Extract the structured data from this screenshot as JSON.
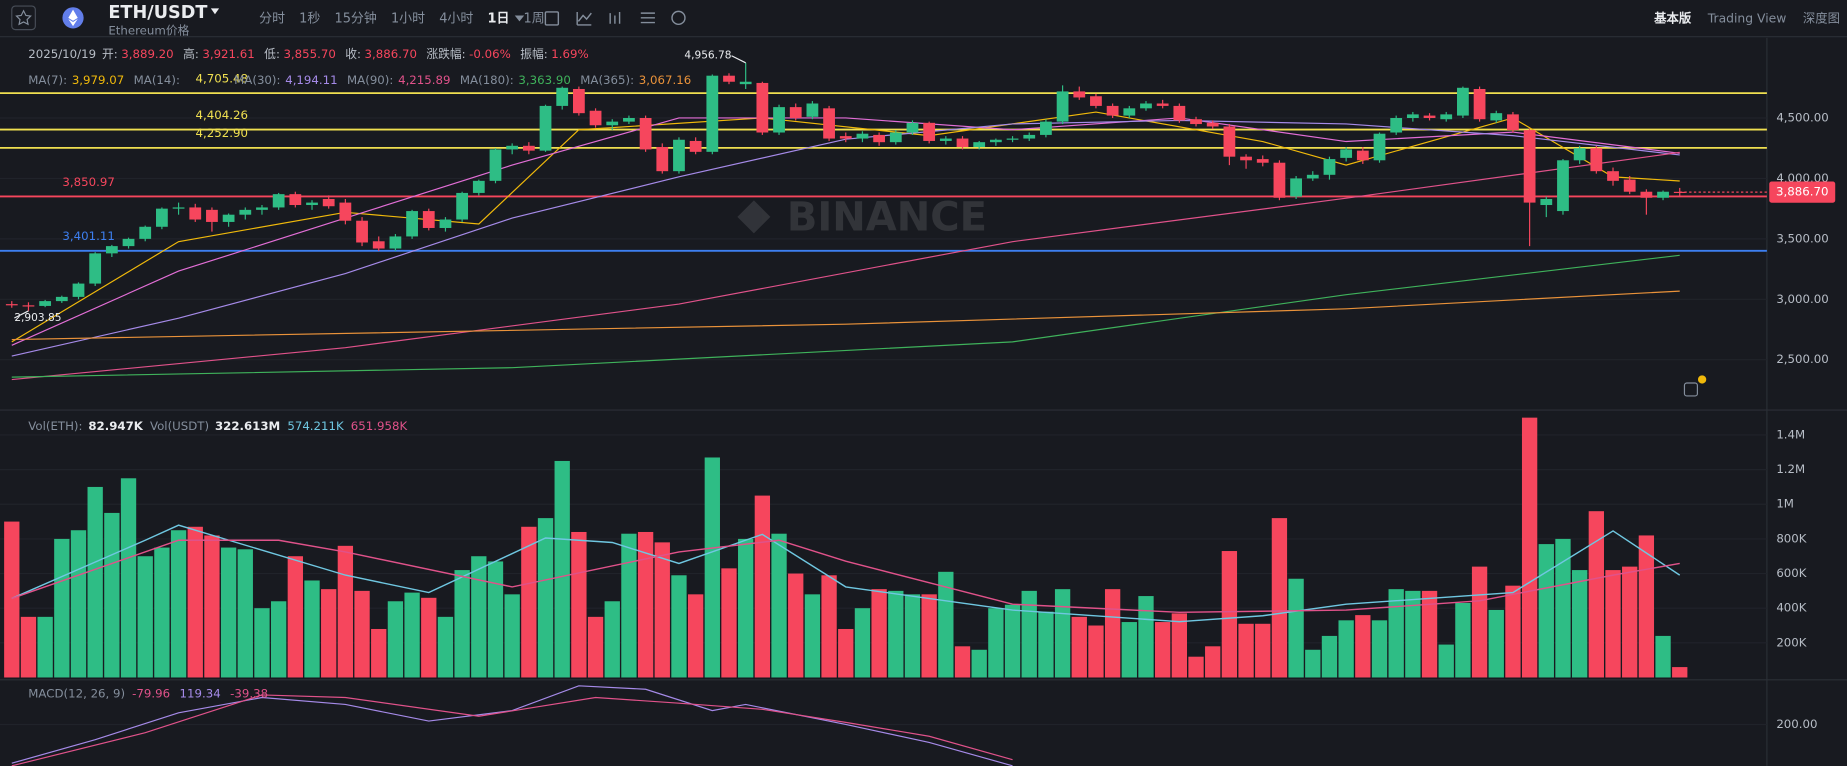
{
  "toolbar": {
    "symbol": "ETH/USDT",
    "subtitle": "Ethereum价格",
    "intervals": [
      "分时",
      "1秒",
      "15分钟",
      "1小时",
      "4小时",
      "1日",
      "1周"
    ],
    "active_index": 5,
    "views": [
      "基本版",
      "Trading View",
      "深度图"
    ],
    "active_view_index": 0
  },
  "ohlc_legend": {
    "date": "2025/10/19",
    "items": [
      {
        "label": "开:",
        "value": "3,889.20"
      },
      {
        "label": "高:",
        "value": "3,921.61"
      },
      {
        "label": "低:",
        "value": "3,855.70"
      },
      {
        "label": "收:",
        "value": "3,886.70"
      },
      {
        "label": "涨跌幅:",
        "value": "-0.06%"
      },
      {
        "label": "振幅:",
        "value": "1.69%"
      }
    ]
  },
  "watermark": "BINANCE",
  "chart_data": [
    {
      "type": "candlestick",
      "up_color": "#2ebd85",
      "down_color": "#f6465d",
      "ylim": [
        2093,
        5163
      ],
      "yticks": [
        {
          "value": 4500,
          "label": "4,500.00"
        },
        {
          "value": 4000,
          "label": "4,000.00"
        },
        {
          "value": 3500,
          "label": "3,500.00"
        },
        {
          "value": 3000,
          "label": "3,000.00"
        },
        {
          "value": 2500,
          "label": "2,500.00"
        }
      ],
      "grid": true,
      "ohlc": [
        [
          2960,
          2985,
          2930,
          2950
        ],
        [
          2950,
          2975,
          2904,
          2945
        ],
        [
          2945,
          2995,
          2935,
          2985
        ],
        [
          2985,
          3030,
          2970,
          3020
        ],
        [
          3020,
          3140,
          3000,
          3130
        ],
        [
          3130,
          3390,
          3110,
          3380
        ],
        [
          3380,
          3450,
          3350,
          3440
        ],
        [
          3440,
          3510,
          3420,
          3500
        ],
        [
          3500,
          3610,
          3480,
          3600
        ],
        [
          3600,
          3760,
          3580,
          3750
        ],
        [
          3750,
          3800,
          3700,
          3760
        ],
        [
          3760,
          3790,
          3640,
          3660
        ],
        [
          3740,
          3760,
          3560,
          3640
        ],
        [
          3640,
          3710,
          3600,
          3700
        ],
        [
          3700,
          3760,
          3660,
          3740
        ],
        [
          3740,
          3780,
          3700,
          3760
        ],
        [
          3760,
          3880,
          3740,
          3870
        ],
        [
          3870,
          3890,
          3760,
          3780
        ],
        [
          3780,
          3820,
          3740,
          3800
        ],
        [
          3830,
          3860,
          3750,
          3770
        ],
        [
          3800,
          3830,
          3620,
          3650
        ],
        [
          3650,
          3680,
          3440,
          3470
        ],
        [
          3480,
          3520,
          3400,
          3420
        ],
        [
          3420,
          3540,
          3400,
          3520
        ],
        [
          3520,
          3740,
          3500,
          3730
        ],
        [
          3730,
          3750,
          3570,
          3590
        ],
        [
          3590,
          3680,
          3560,
          3660
        ],
        [
          3660,
          3890,
          3640,
          3880
        ],
        [
          3880,
          3990,
          3860,
          3980
        ],
        [
          3980,
          4250,
          3960,
          4240
        ],
        [
          4240,
          4290,
          4200,
          4270
        ],
        [
          4270,
          4300,
          4200,
          4230
        ],
        [
          4230,
          4610,
          4220,
          4600
        ],
        [
          4600,
          4760,
          4570,
          4750
        ],
        [
          4740,
          4760,
          4520,
          4540
        ],
        [
          4560,
          4580,
          4420,
          4440
        ],
        [
          4440,
          4490,
          4400,
          4470
        ],
        [
          4470,
          4520,
          4450,
          4500
        ],
        [
          4500,
          4520,
          4220,
          4240
        ],
        [
          4260,
          4290,
          4040,
          4060
        ],
        [
          4060,
          4340,
          4040,
          4320
        ],
        [
          4310,
          4340,
          4200,
          4220
        ],
        [
          4220,
          4860,
          4200,
          4850
        ],
        [
          4850,
          4870,
          4780,
          4800
        ],
        [
          4780,
          4956.78,
          4740,
          4800
        ],
        [
          4790,
          4800,
          4360,
          4380
        ],
        [
          4380,
          4610,
          4360,
          4590
        ],
        [
          4590,
          4620,
          4480,
          4500
        ],
        [
          4510,
          4640,
          4490,
          4620
        ],
        [
          4580,
          4600,
          4310,
          4330
        ],
        [
          4350,
          4380,
          4300,
          4330
        ],
        [
          4330,
          4390,
          4300,
          4370
        ],
        [
          4360,
          4380,
          4270,
          4300
        ],
        [
          4300,
          4400,
          4280,
          4380
        ],
        [
          4380,
          4480,
          4360,
          4460
        ],
        [
          4460,
          4470,
          4290,
          4310
        ],
        [
          4310,
          4350,
          4280,
          4330
        ],
        [
          4330,
          4350,
          4240,
          4260
        ],
        [
          4260,
          4310,
          4240,
          4300
        ],
        [
          4300,
          4330,
          4270,
          4320
        ],
        [
          4320,
          4350,
          4300,
          4330
        ],
        [
          4330,
          4380,
          4310,
          4360
        ],
        [
          4360,
          4490,
          4340,
          4470
        ],
        [
          4470,
          4770,
          4450,
          4720
        ],
        [
          4720,
          4760,
          4650,
          4670
        ],
        [
          4680,
          4700,
          4580,
          4600
        ],
        [
          4600,
          4620,
          4500,
          4520
        ],
        [
          4520,
          4600,
          4500,
          4580
        ],
        [
          4580,
          4640,
          4560,
          4620
        ],
        [
          4620,
          4650,
          4580,
          4600
        ],
        [
          4600,
          4620,
          4460,
          4480
        ],
        [
          4490,
          4510,
          4430,
          4450
        ],
        [
          4460,
          4480,
          4410,
          4430
        ],
        [
          4430,
          4450,
          4110,
          4180
        ],
        [
          4180,
          4200,
          4080,
          4150
        ],
        [
          4160,
          4190,
          4100,
          4130
        ],
        [
          4130,
          4150,
          3820,
          3840
        ],
        [
          3850,
          4020,
          3830,
          4000
        ],
        [
          4000,
          4060,
          3980,
          4030
        ],
        [
          4030,
          4180,
          3990,
          4160
        ],
        [
          4170,
          4260,
          4140,
          4240
        ],
        [
          4230,
          4260,
          4120,
          4150
        ],
        [
          4150,
          4380,
          4130,
          4370
        ],
        [
          4380,
          4520,
          4360,
          4500
        ],
        [
          4500,
          4550,
          4470,
          4530
        ],
        [
          4520,
          4540,
          4480,
          4500
        ],
        [
          4490,
          4550,
          4470,
          4530
        ],
        [
          4520,
          4760,
          4500,
          4750
        ],
        [
          4740,
          4760,
          4470,
          4490
        ],
        [
          4480,
          4560,
          4460,
          4540
        ],
        [
          4530,
          4550,
          4380,
          4400
        ],
        [
          4400,
          4410,
          3440,
          3800
        ],
        [
          3780,
          3850,
          3680,
          3830
        ],
        [
          3730,
          4160,
          3700,
          4150
        ],
        [
          4150,
          4270,
          4120,
          4250
        ],
        [
          4250,
          4270,
          4040,
          4060
        ],
        [
          4060,
          4090,
          3940,
          3980
        ],
        [
          3990,
          4020,
          3870,
          3890
        ],
        [
          3890,
          3910,
          3700,
          3840
        ],
        [
          3840,
          3900,
          3820,
          3890
        ],
        [
          3889.2,
          3921.61,
          3855.7,
          3886.7
        ]
      ],
      "ma_series": [
        {
          "name": "MA(7):",
          "value_label": "3,979.07",
          "color": "#f0b90b",
          "x": [
            0,
            10,
            20,
            28,
            34,
            45,
            55,
            65,
            75,
            80,
            90,
            96,
            100
          ],
          "values": [
            2648,
            3477,
            3720,
            3623,
            4403,
            4500,
            4354,
            4549,
            4305,
            4110,
            4500,
            4013,
            3979.07
          ]
        },
        {
          "name": "MA(14):",
          "color": "#e26ed6",
          "x": [
            0,
            10,
            20,
            30,
            40,
            50,
            60,
            70,
            80,
            90,
            100
          ],
          "values": [
            2619,
            3233,
            3672,
            4110,
            4500,
            4500,
            4403,
            4500,
            4305,
            4383,
            4208
          ]
        },
        {
          "name": "MA(30):",
          "value_label": "4,194.11",
          "color": "#a58ae8",
          "x": [
            0,
            10,
            20,
            30,
            40,
            50,
            60,
            70,
            80,
            90,
            100
          ],
          "values": [
            2531,
            2843,
            3213,
            3672,
            4013,
            4325,
            4451,
            4480,
            4451,
            4354,
            4194.11
          ]
        },
        {
          "name": "MA(90):",
          "value_label": "4,215.89",
          "color": "#e0528a",
          "x": [
            0,
            20,
            40,
            60,
            80,
            100
          ],
          "values": [
            2336,
            2600,
            2960,
            3477,
            3837,
            4215.89
          ]
        },
        {
          "name": "MA(180):",
          "value_label": "3,363.90",
          "color": "#3fb25b",
          "x": [
            0,
            30,
            60,
            80,
            100
          ],
          "values": [
            2356,
            2434,
            2648,
            3038,
            3363.9
          ]
        },
        {
          "name": "MA(365):",
          "value_label": "3,067.16",
          "color": "#e9923a",
          "x": [
            0,
            50,
            80,
            100
          ],
          "values": [
            2667,
            2794,
            2921,
            3067.16
          ]
        }
      ],
      "levels": [
        {
          "value": 4705.48,
          "label": "4,705.48",
          "color": "#f0e050"
        },
        {
          "value": 4404.26,
          "label": "4,404.26",
          "color": "#f0e050"
        },
        {
          "value": 4252.9,
          "label": "4,252.90",
          "color": "#f0e050"
        },
        {
          "value": 3850.97,
          "label": "3,850.97",
          "color": "#f6465d"
        },
        {
          "value": 3401.11,
          "label": "3,401.11",
          "color": "#3d7ff0"
        }
      ],
      "annotations": [
        {
          "index": 44,
          "value": 4956.78,
          "label": "4,956.78"
        },
        {
          "index": 1,
          "value": 2903.85,
          "label": "2,903.85"
        }
      ],
      "last_price": {
        "value": 3886.7,
        "label": "3,886.70"
      }
    },
    {
      "type": "bar",
      "legend": [
        {
          "label": "Vol(ETH):",
          "value": "82.947K"
        },
        {
          "label": "Vol(USDT)",
          "value": "322.613M"
        }
      ],
      "ylim": [
        0,
        1530000
      ],
      "yticks": [
        {
          "value": 1400000,
          "label": "1.4M"
        },
        {
          "value": 1200000,
          "label": "1.2M"
        },
        {
          "value": 1000000,
          "label": "1M"
        },
        {
          "value": 800000,
          "label": "800K"
        },
        {
          "value": 600000,
          "label": "600K"
        },
        {
          "value": 400000,
          "label": "400K"
        },
        {
          "value": 200000,
          "label": "200K"
        }
      ],
      "values": [
        900000,
        350000,
        350000,
        800000,
        850000,
        1100000,
        950000,
        1150000,
        700000,
        750000,
        850000,
        870000,
        820000,
        750000,
        740000,
        400000,
        440000,
        700000,
        560000,
        510000,
        760000,
        500000,
        280000,
        440000,
        490000,
        460000,
        350000,
        620000,
        700000,
        670000,
        480000,
        870000,
        920000,
        1250000,
        840000,
        350000,
        440000,
        830000,
        840000,
        780000,
        590000,
        480000,
        1270000,
        630000,
        800000,
        1050000,
        830000,
        600000,
        480000,
        590000,
        280000,
        400000,
        510000,
        500000,
        480000,
        480000,
        610000,
        180000,
        160000,
        400000,
        420000,
        500000,
        380000,
        510000,
        350000,
        300000,
        510000,
        320000,
        470000,
        320000,
        370000,
        120000,
        180000,
        730000,
        310000,
        310000,
        920000,
        570000,
        160000,
        240000,
        330000,
        360000,
        330000,
        510000,
        500000,
        500000,
        190000,
        430000,
        640000,
        390000,
        530000,
        1500000,
        770000,
        800000,
        620000,
        960000,
        620000,
        640000,
        820000,
        240000,
        60000
      ],
      "series": [
        {
          "value_label": "574.211K",
          "color": "#6fc7e1",
          "x": [
            0,
            8,
            10,
            20,
            25,
            32,
            36,
            40,
            45,
            50,
            60,
            70,
            75,
            80,
            90,
            96,
            100
          ],
          "values": [
            456000,
            792000,
            879000,
            591000,
            490000,
            805000,
            779000,
            658000,
            826000,
            523000,
            389000,
            322000,
            356000,
            423000,
            490000,
            846000,
            591000
          ]
        },
        {
          "value_label": "651.958K",
          "color": "#e0528a",
          "x": [
            0,
            10,
            16,
            20,
            30,
            40,
            46,
            50,
            60,
            70,
            80,
            88,
            96,
            100
          ],
          "values": [
            456000,
            792000,
            792000,
            725000,
            523000,
            725000,
            792000,
            671000,
            423000,
            376000,
            389000,
            443000,
            591000,
            658000
          ]
        }
      ]
    },
    {
      "type": "line",
      "title": "MACD(12, 26, 9)",
      "legend_values": [
        {
          "text": "-79.96",
          "color": "#e0528a"
        },
        {
          "text": "119.34",
          "color": "#a58ae8"
        },
        {
          "text": "-39.38",
          "color": "#e0528a"
        }
      ],
      "ylim": [
        105,
        300
      ],
      "yticks": [
        {
          "value": 200,
          "label": "200.00"
        }
      ],
      "series": [
        {
          "color": "#a58ae8",
          "x": [
            0,
            5,
            10,
            15,
            20,
            25,
            30,
            34,
            38,
            42,
            44,
            50,
            55,
            60
          ],
          "values": [
            111,
            165,
            227,
            262,
            246,
            208,
            232,
            289,
            281,
            232,
            246,
            200,
            159,
            105
          ]
        },
        {
          "color": "#e0528a",
          "x": [
            0,
            8,
            15,
            20,
            28,
            35,
            40,
            45,
            50,
            55,
            60
          ],
          "values": [
            105,
            181,
            268,
            262,
            219,
            262,
            249,
            235,
            205,
            173,
            119
          ]
        }
      ]
    }
  ]
}
